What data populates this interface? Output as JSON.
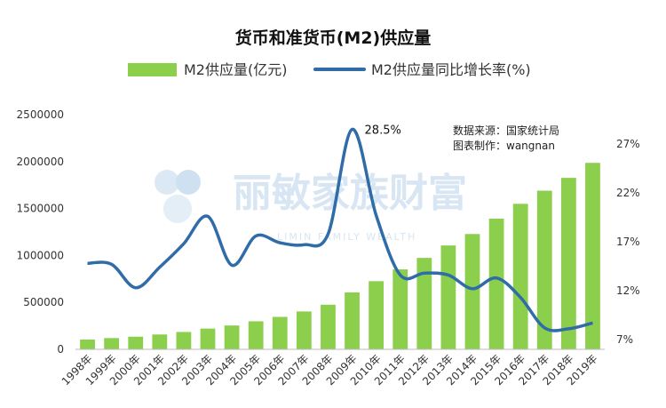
{
  "chart_data": {
    "type": "bar+line",
    "title": "货币和准货币(M2)供应量",
    "categories": [
      "1998年",
      "1999年",
      "2000年",
      "2001年",
      "2002年",
      "2003年",
      "2004年",
      "2005年",
      "2006年",
      "2007年",
      "2008年",
      "2009年",
      "2010年",
      "2011年",
      "2012年",
      "2013年",
      "2014年",
      "2015年",
      "2016年",
      "2017年",
      "2018年",
      "2019年"
    ],
    "series": [
      {
        "name": "M2供应量(亿元)",
        "type": "bar",
        "axis": "left",
        "color": "#8ccf4d",
        "values": [
          104499,
          119898,
          134610,
          158302,
          185007,
          221223,
          254107,
          298756,
          345578,
          403442,
          475166,
          606225,
          725852,
          851591,
          974159,
          1106525,
          1228375,
          1392278,
          1550067,
          1690235,
          1826744,
          1986489
        ]
      },
      {
        "name": "M2供应量同比增长率(%)",
        "type": "line",
        "axis": "right",
        "color": "#2f6ca8",
        "values": [
          14.8,
          14.7,
          12.3,
          14.4,
          16.8,
          19.6,
          14.6,
          17.6,
          16.9,
          16.7,
          17.8,
          28.5,
          19.7,
          13.6,
          13.8,
          13.6,
          12.2,
          13.3,
          11.3,
          8.2,
          8.1,
          8.7
        ]
      }
    ],
    "y_left": {
      "min": 0,
      "max": 2500000,
      "ticks": [
        "0",
        "500000",
        "1000000",
        "1500000",
        "2000000",
        "2500000"
      ]
    },
    "y_right": {
      "min": 6,
      "max": 30,
      "ticks": [
        "7%",
        "12%",
        "17%",
        "22%",
        "27%"
      ]
    },
    "annotation": {
      "text": "28.5%",
      "category": "2009年"
    },
    "legend": "top-center",
    "grid": false
  },
  "source": {
    "line1": "数据来源：国家统计局",
    "line2": "图表制作：wangnan"
  },
  "watermark": {
    "text": "丽敏家族财富",
    "subtext": "LIMIN FAMILY WEALTH"
  }
}
